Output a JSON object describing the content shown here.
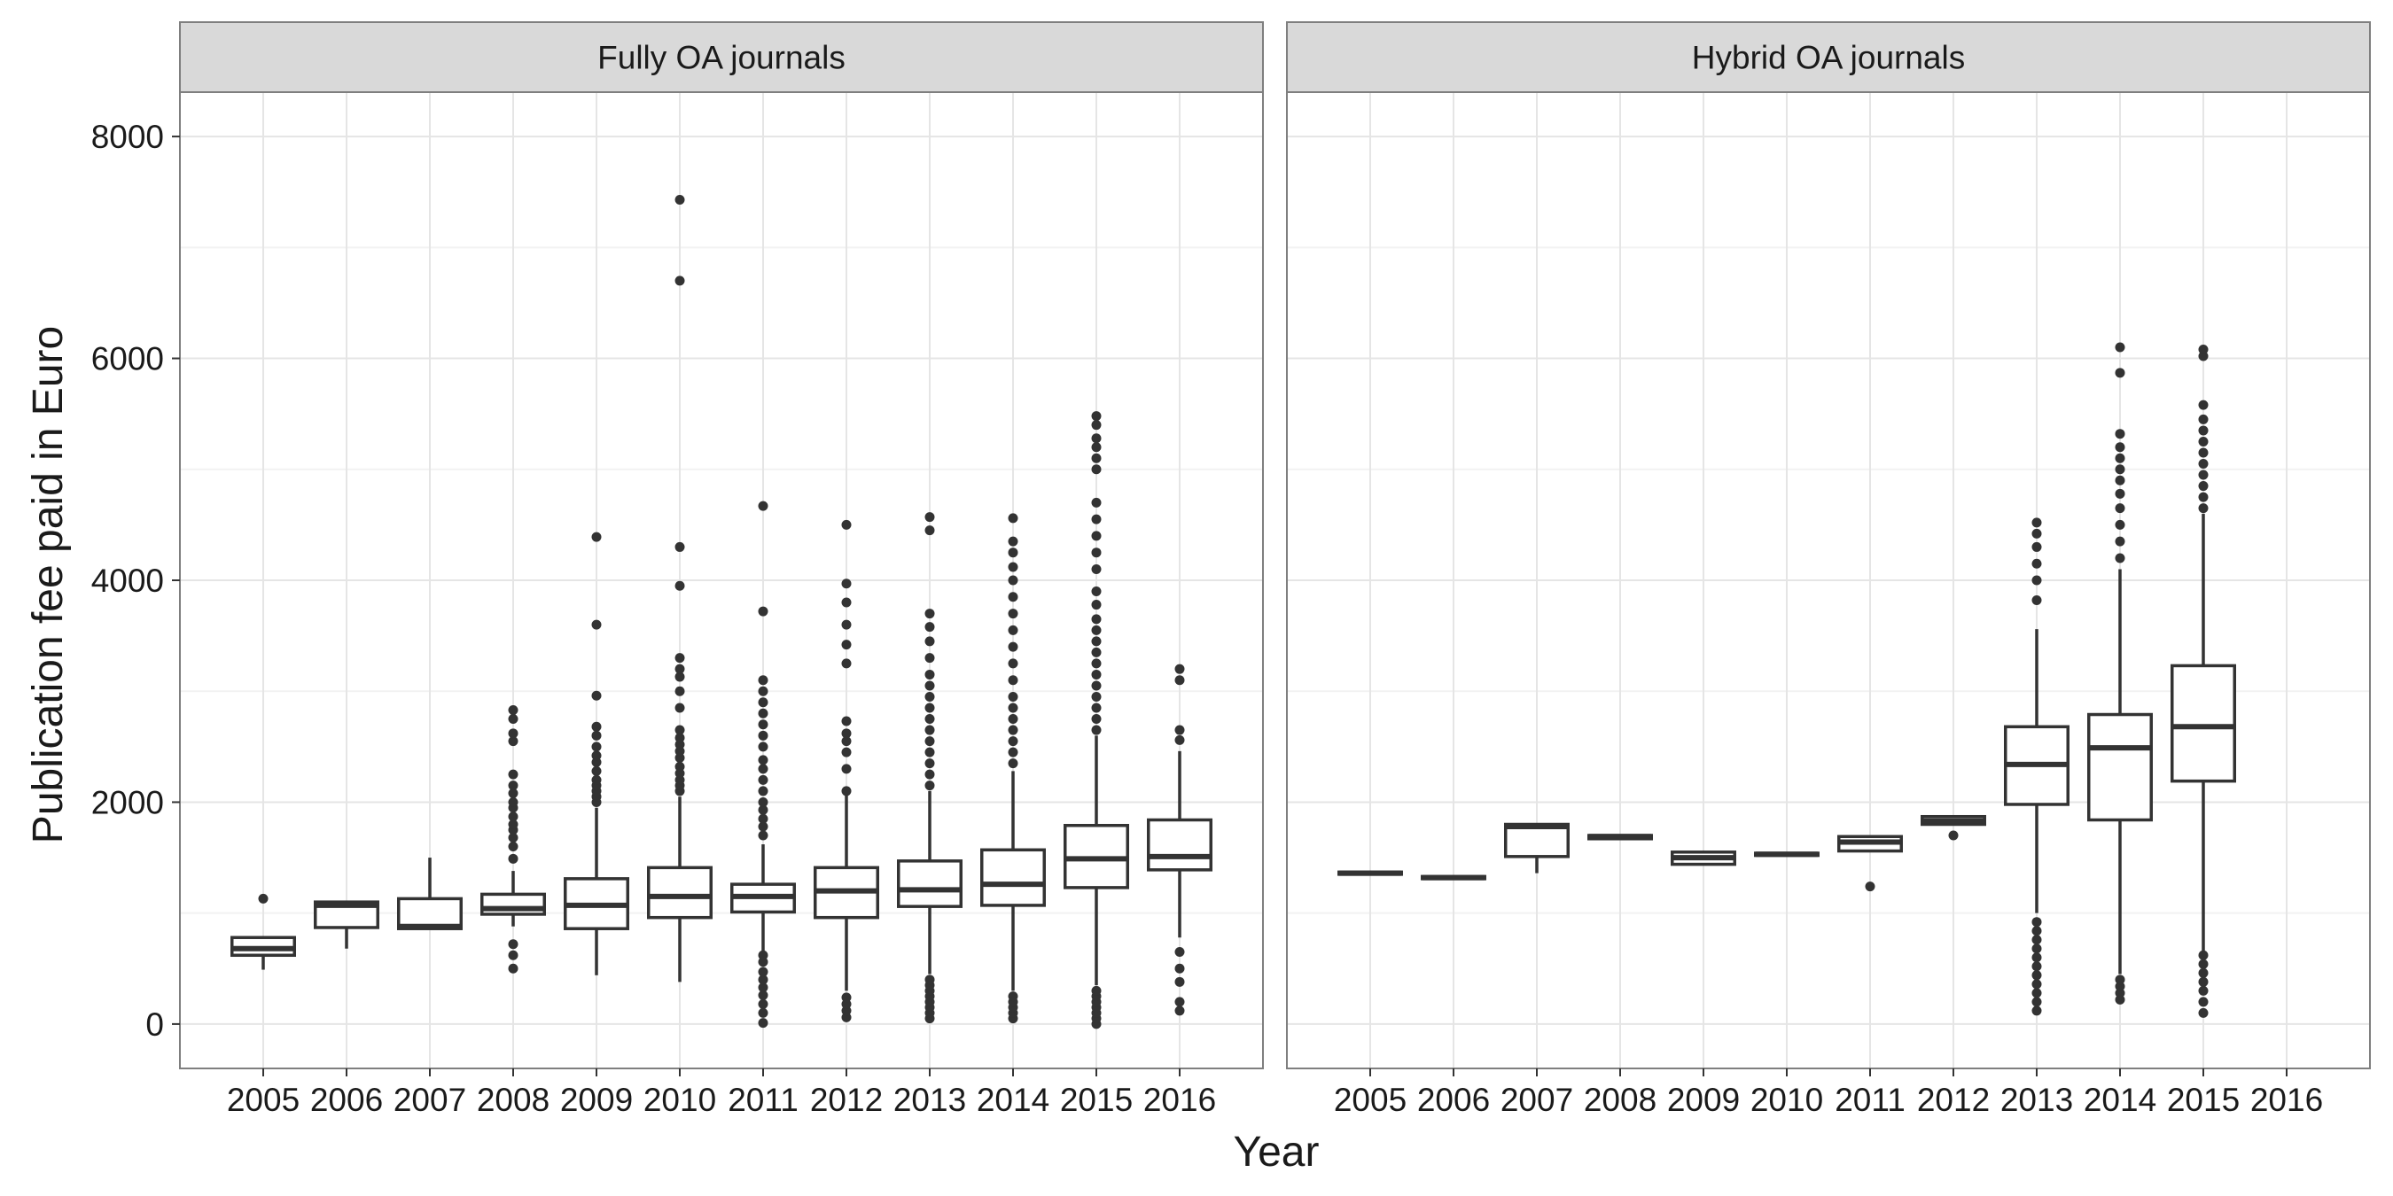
{
  "chart_data": {
    "type": "boxplot",
    "xlabel": "Year",
    "ylabel": "Publication fee paid in Euro",
    "ylim": [
      -400,
      8400
    ],
    "yticks": [
      0,
      2000,
      4000,
      6000,
      8000
    ],
    "categories": [
      "2005",
      "2006",
      "2007",
      "2008",
      "2009",
      "2010",
      "2011",
      "2012",
      "2013",
      "2014",
      "2015",
      "2016"
    ],
    "grid": true,
    "facets": [
      {
        "name": "Fully OA journals",
        "boxes": [
          {
            "x": "2005",
            "q1": 620,
            "median": 680,
            "q3": 780,
            "lower": 490,
            "upper": 790,
            "outliers": [
              1130
            ]
          },
          {
            "x": "2006",
            "q1": 870,
            "median": 1070,
            "q3": 1100,
            "lower": 680,
            "upper": 1100,
            "outliers": []
          },
          {
            "x": "2007",
            "q1": 860,
            "median": 880,
            "q3": 1130,
            "lower": 860,
            "upper": 1500,
            "outliers": []
          },
          {
            "x": "2008",
            "q1": 990,
            "median": 1040,
            "q3": 1170,
            "lower": 880,
            "upper": 1380,
            "outliers": [
              500,
              620,
              720,
              1490,
              1600,
              1680,
              1750,
              1800,
              1870,
              1950,
              2000,
              2080,
              2150,
              2250,
              2550,
              2620,
              2750,
              2830
            ]
          },
          {
            "x": "2009",
            "q1": 860,
            "median": 1070,
            "q3": 1310,
            "lower": 440,
            "upper": 1950,
            "outliers": [
              2000,
              2050,
              2100,
              2150,
              2200,
              2280,
              2360,
              2420,
              2500,
              2600,
              2680,
              2960,
              3600,
              4390
            ]
          },
          {
            "x": "2010",
            "q1": 960,
            "median": 1150,
            "q3": 1410,
            "lower": 380,
            "upper": 2050,
            "outliers": [
              2100,
              2150,
              2200,
              2260,
              2320,
              2400,
              2460,
              2520,
              2580,
              2650,
              2850,
              3000,
              3130,
              3200,
              3300,
              3950,
              4300,
              6700,
              7430
            ]
          },
          {
            "x": "2011",
            "q1": 1010,
            "median": 1150,
            "q3": 1260,
            "lower": 660,
            "upper": 1620,
            "outliers": [
              10,
              100,
              180,
              260,
              330,
              400,
              470,
              560,
              620,
              1700,
              1780,
              1850,
              1930,
              2000,
              2100,
              2200,
              2300,
              2380,
              2500,
              2600,
              2700,
              2800,
              2900,
              3000,
              3100,
              3720,
              4670
            ]
          },
          {
            "x": "2012",
            "q1": 960,
            "median": 1200,
            "q3": 1410,
            "lower": 300,
            "upper": 2070,
            "outliers": [
              60,
              120,
              180,
              240,
              2100,
              2300,
              2450,
              2550,
              2620,
              2730,
              3250,
              3420,
              3600,
              3800,
              3970,
              4500
            ]
          },
          {
            "x": "2013",
            "q1": 1060,
            "median": 1210,
            "q3": 1470,
            "lower": 450,
            "upper": 2100,
            "outliers": [
              50,
              100,
              150,
              200,
              250,
              300,
              350,
              400,
              2150,
              2250,
              2350,
              2450,
              2550,
              2650,
              2750,
              2850,
              2950,
              3050,
              3150,
              3300,
              3450,
              3580,
              3700,
              4450,
              4570
            ]
          },
          {
            "x": "2014",
            "q1": 1070,
            "median": 1260,
            "q3": 1570,
            "lower": 300,
            "upper": 2280,
            "outliers": [
              50,
              100,
              150,
              200,
              250,
              2350,
              2450,
              2550,
              2650,
              2750,
              2850,
              2950,
              3100,
              3250,
              3400,
              3550,
              3700,
              3850,
              4000,
              4120,
              4250,
              4350,
              4560
            ]
          },
          {
            "x": "2015",
            "q1": 1230,
            "median": 1490,
            "q3": 1790,
            "lower": 350,
            "upper": 2600,
            "outliers": [
              0,
              50,
              100,
              150,
              200,
              250,
              300,
              2650,
              2750,
              2850,
              2950,
              3050,
              3150,
              3250,
              3350,
              3450,
              3550,
              3650,
              3780,
              3900,
              4100,
              4250,
              4400,
              4550,
              4700,
              5000,
              5100,
              5200,
              5280,
              5400,
              5480
            ]
          },
          {
            "x": "2016",
            "q1": 1390,
            "median": 1510,
            "q3": 1840,
            "lower": 780,
            "upper": 2460,
            "outliers": [
              120,
              200,
              380,
              500,
              650,
              2560,
              2650,
              3100,
              3200
            ]
          }
        ]
      },
      {
        "name": "Hybrid OA journals",
        "boxes": [
          {
            "x": "2005",
            "q1": 1350,
            "median": 1360,
            "q3": 1370,
            "lower": 1350,
            "upper": 1370,
            "outliers": []
          },
          {
            "x": "2006",
            "q1": 1310,
            "median": 1320,
            "q3": 1330,
            "lower": 1310,
            "upper": 1330,
            "outliers": []
          },
          {
            "x": "2007",
            "q1": 1510,
            "median": 1780,
            "q3": 1800,
            "lower": 1360,
            "upper": 1800,
            "outliers": []
          },
          {
            "x": "2008",
            "q1": 1670,
            "median": 1690,
            "q3": 1700,
            "lower": 1670,
            "upper": 1710,
            "outliers": []
          },
          {
            "x": "2009",
            "q1": 1440,
            "median": 1500,
            "q3": 1550,
            "lower": 1440,
            "upper": 1560,
            "outliers": []
          },
          {
            "x": "2010",
            "q1": 1520,
            "median": 1530,
            "q3": 1540,
            "lower": 1520,
            "upper": 1540,
            "outliers": []
          },
          {
            "x": "2011",
            "q1": 1560,
            "median": 1640,
            "q3": 1690,
            "lower": 1560,
            "upper": 1690,
            "outliers": [
              1240
            ]
          },
          {
            "x": "2012",
            "q1": 1800,
            "median": 1830,
            "q3": 1870,
            "lower": 1800,
            "upper": 1880,
            "outliers": [
              1700
            ]
          },
          {
            "x": "2013",
            "q1": 1980,
            "median": 2340,
            "q3": 2680,
            "lower": 1000,
            "upper": 3560,
            "outliers": [
              120,
              200,
              280,
              360,
              440,
              520,
              600,
              680,
              760,
              840,
              920,
              3820,
              4000,
              4150,
              4300,
              4420,
              4520
            ]
          },
          {
            "x": "2014",
            "q1": 1840,
            "median": 2490,
            "q3": 2790,
            "lower": 450,
            "upper": 4100,
            "outliers": [
              220,
              280,
              340,
              400,
              4200,
              4350,
              4500,
              4650,
              4780,
              4900,
              5000,
              5100,
              5200,
              5320,
              5870,
              6100
            ]
          },
          {
            "x": "2015",
            "q1": 2190,
            "median": 2680,
            "q3": 3230,
            "lower": 660,
            "upper": 4600,
            "outliers": [
              100,
              200,
              300,
              380,
              460,
              540,
              620,
              4650,
              4750,
              4850,
              4950,
              5050,
              5150,
              5250,
              5350,
              5450,
              5580,
              6020,
              6080
            ]
          },
          {
            "x": "2016",
            "q1": null,
            "median": null,
            "q3": null,
            "lower": null,
            "upper": null,
            "outliers": []
          }
        ]
      }
    ]
  }
}
